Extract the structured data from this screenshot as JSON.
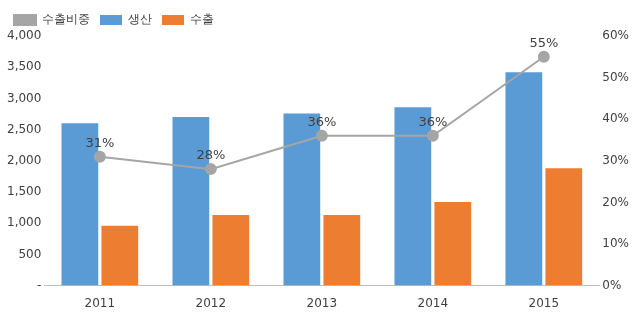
{
  "chart_data": {
    "type": "bar",
    "categories": [
      "2011",
      "2012",
      "2013",
      "2014",
      "2015"
    ],
    "series": [
      {
        "name": "생산",
        "color": "#5B9BD5",
        "values": [
          2600,
          2700,
          2760,
          2860,
          3420
        ]
      },
      {
        "name": "수출",
        "color": "#ED7D31",
        "values": [
          960,
          1130,
          1130,
          1340,
          1880
        ]
      },
      {
        "name": "수출비중",
        "type": "line",
        "color": "#A5A5A5",
        "marker": "circle",
        "axis": "y2",
        "data_labels": true,
        "values": [
          31,
          28,
          36,
          36,
          55
        ],
        "value_labels": [
          "31%",
          "28%",
          "36%",
          "36%",
          "55%"
        ]
      }
    ],
    "ylim": [
      0,
      4000
    ],
    "yticks": [
      {
        "value": 0,
        "label": "-"
      },
      500,
      {
        "value": 1000,
        "label": "1,000"
      },
      {
        "value": 1500,
        "label": "1,500"
      },
      {
        "value": 2000,
        "label": "2,000"
      },
      {
        "value": 2500,
        "label": "2,500"
      },
      {
        "value": 3000,
        "label": "3,000"
      },
      {
        "value": 3500,
        "label": "3,500"
      },
      {
        "value": 4000,
        "label": "4,000"
      }
    ],
    "y2lim": [
      0,
      60
    ],
    "y2ticks": [
      {
        "value": 0,
        "label": "0%"
      },
      {
        "value": 10,
        "label": "10%"
      },
      {
        "value": 20,
        "label": "20%"
      },
      {
        "value": 30,
        "label": "30%"
      },
      {
        "value": 40,
        "label": "40%"
      },
      {
        "value": 50,
        "label": "50%"
      },
      {
        "value": 60,
        "label": "60%"
      }
    ],
    "grid": false,
    "legend": "upper left"
  }
}
